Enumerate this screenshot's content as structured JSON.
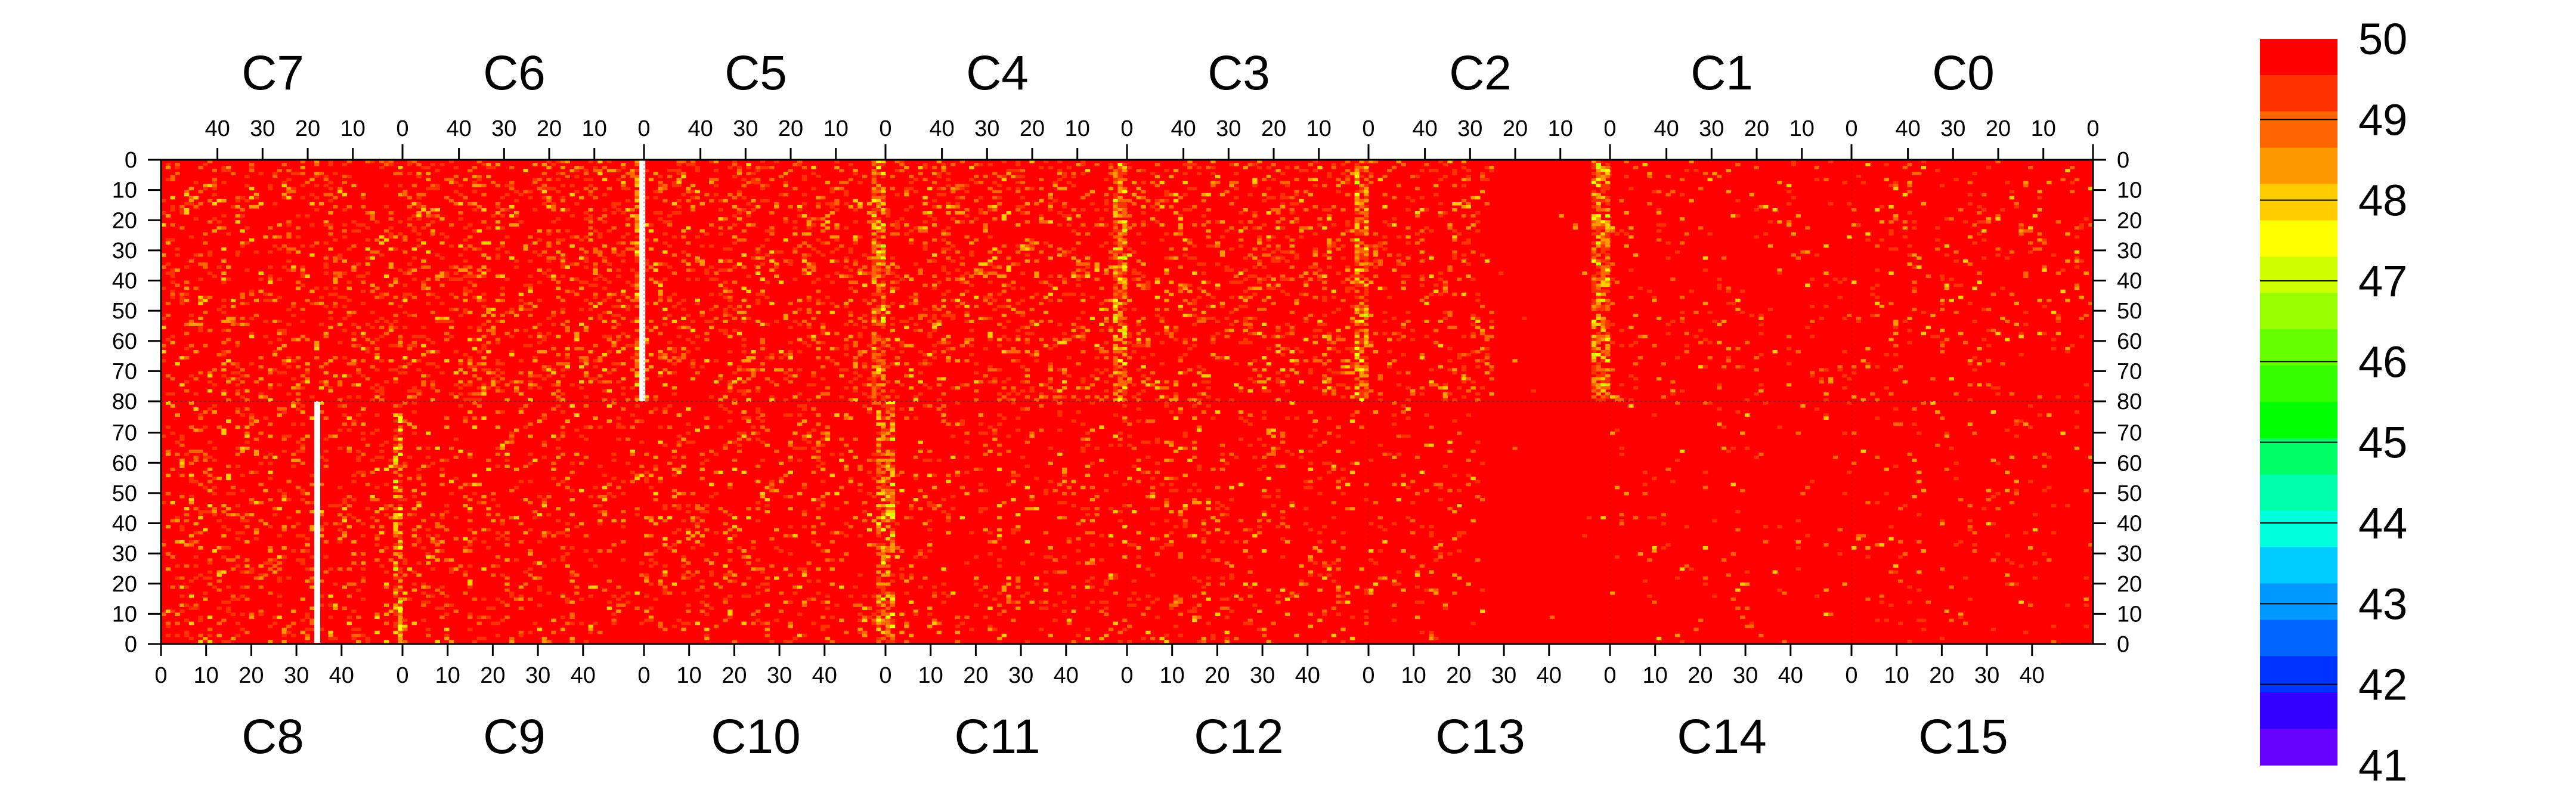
{
  "chart_data": {
    "type": "heatmap",
    "top_chip_labels": [
      "C7",
      "C6",
      "C5",
      "C4",
      "C3",
      "C2",
      "C1",
      "C0"
    ],
    "bottom_chip_labels": [
      "C8",
      "C9",
      "C10",
      "C11",
      "C12",
      "C13",
      "C14",
      "C15"
    ],
    "top_x_ticks": [
      40,
      30,
      20,
      10,
      0
    ],
    "bottom_x_ticks": [
      0,
      10,
      20,
      30,
      40
    ],
    "chip_edge_tick": "0",
    "top_y_ticks": [
      0,
      10,
      20,
      30,
      40,
      50,
      60,
      70,
      80
    ],
    "bottom_y_ticks": [
      70,
      60,
      50,
      40,
      30,
      20,
      10,
      0
    ],
    "columns_per_chip": 52,
    "rows_per_half": 80,
    "value_range": [
      41,
      50
    ],
    "colorbar_labels": [
      "50",
      "49",
      "48",
      "47",
      "46",
      "45",
      "44",
      "43",
      "42",
      "41"
    ],
    "colorbar_colors": [
      "#ff0000",
      "#ff3300",
      "#ff6600",
      "#ff9900",
      "#ffcc00",
      "#ffff00",
      "#ccff00",
      "#99ff00",
      "#66ff00",
      "#33ff00",
      "#00ff00",
      "#00ff66",
      "#00ffaa",
      "#00ffdd",
      "#00ccff",
      "#0099ff",
      "#0066ff",
      "#0033ff",
      "#3300ff",
      "#6600ff"
    ],
    "dominant_value": 50,
    "dead_columns": [
      {
        "chip": "C6",
        "half": "top",
        "column": 51
      },
      {
        "chip": "C8",
        "half": "bottom",
        "column": 33
      }
    ],
    "noisy_columns": [
      {
        "chip": "C6",
        "half": "top",
        "columns": [
          0,
          1
        ]
      },
      {
        "chip": "C5",
        "half": "top",
        "columns": [
          0,
          1,
          2
        ]
      },
      {
        "chip": "C4",
        "half": "top",
        "columns": [
          0,
          1,
          2
        ]
      },
      {
        "chip": "C3",
        "half": "top",
        "columns": [
          0,
          1,
          2
        ]
      },
      {
        "chip": "C2",
        "half": "top",
        "columns": [
          0,
          1,
          2,
          3
        ]
      },
      {
        "chip": "C8",
        "half": "bottom",
        "columns": [
          50,
          51
        ]
      },
      {
        "chip": "C10",
        "half": "bottom",
        "columns": [
          50,
          51
        ]
      },
      {
        "chip": "C11",
        "half": "bottom",
        "columns": [
          0,
          1
        ]
      }
    ]
  }
}
